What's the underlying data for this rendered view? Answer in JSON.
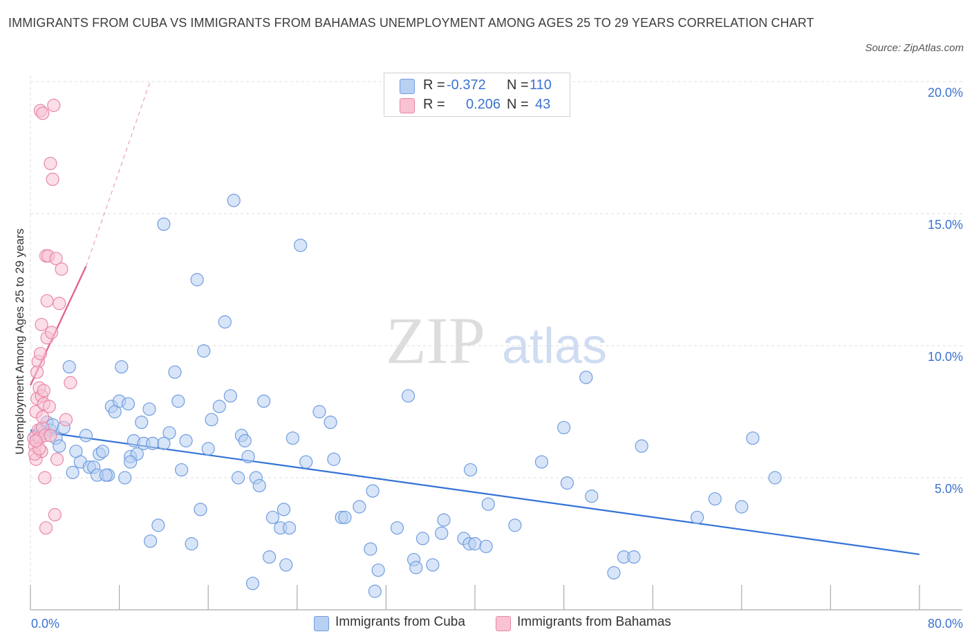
{
  "title": "IMMIGRANTS FROM CUBA VS IMMIGRANTS FROM BAHAMAS UNEMPLOYMENT AMONG AGES 25 TO 29 YEARS CORRELATION CHART",
  "source": "Source: ZipAtlas.com",
  "watermark": {
    "zip": "ZIP",
    "atlas": "atlas"
  },
  "legend": {
    "rows": [
      {
        "r_label": "R =",
        "r_value": "-0.372",
        "n_label": "N =",
        "n_value": "110",
        "color": "#b8d0f2",
        "border": "#6f9de0"
      },
      {
        "r_label": "R =",
        "r_value": "0.206",
        "n_label": "N =",
        "n_value": "43",
        "color": "#f8c3d3",
        "border": "#e987a6"
      }
    ]
  },
  "bottom_legend": [
    {
      "label": "Immigrants from Cuba",
      "color": "#b8d0f2",
      "border": "#6f9de0"
    },
    {
      "label": "Immigrants from Bahamas",
      "color": "#f8c3d3",
      "border": "#e987a6"
    }
  ],
  "chart_data": {
    "type": "scatter",
    "title": "IMMIGRANTS FROM CUBA VS IMMIGRANTS FROM BAHAMAS UNEMPLOYMENT AMONG AGES 25 TO 29 YEARS CORRELATION CHART",
    "ylabel": "Unemployment Among Ages 25 to 29 years",
    "xlabel": "",
    "xlim": [
      0,
      80
    ],
    "ylim": [
      0,
      20
    ],
    "x_tick_labels": [
      "0.0%",
      "80.0%"
    ],
    "y_tick_values": [
      5,
      10,
      15,
      20
    ],
    "y_tick_labels": [
      "5.0%",
      "10.0%",
      "15.0%",
      "20.0%"
    ],
    "grid": true,
    "legend_position": "top-center",
    "series": [
      {
        "name": "Immigrants from Cuba",
        "color": "#6f9de0",
        "fill": "#b8d0f2",
        "trend": {
          "x": [
            0,
            80
          ],
          "y": [
            6.8,
            2.1
          ],
          "color": "#3272d6"
        },
        "points": [
          [
            0.5,
            6.6
          ],
          [
            0.9,
            6.8
          ],
          [
            1.2,
            6.7
          ],
          [
            1.5,
            7.1
          ],
          [
            1.8,
            6.8
          ],
          [
            2.0,
            7.0
          ],
          [
            2.3,
            6.5
          ],
          [
            2.6,
            6.2
          ],
          [
            3.0,
            6.9
          ],
          [
            3.5,
            9.2
          ],
          [
            3.8,
            5.2
          ],
          [
            4.1,
            6.0
          ],
          [
            4.5,
            5.6
          ],
          [
            5.0,
            6.6
          ],
          [
            5.3,
            5.4
          ],
          [
            5.7,
            5.4
          ],
          [
            6.0,
            5.1
          ],
          [
            6.2,
            5.9
          ],
          [
            6.5,
            6.0
          ],
          [
            7.0,
            5.1
          ],
          [
            7.3,
            7.7
          ],
          [
            7.6,
            7.5
          ],
          [
            8.0,
            7.9
          ],
          [
            8.2,
            9.2
          ],
          [
            8.5,
            5.0
          ],
          [
            8.8,
            7.8
          ],
          [
            9.0,
            5.8
          ],
          [
            9.3,
            6.4
          ],
          [
            9.6,
            5.9
          ],
          [
            10.0,
            7.1
          ],
          [
            10.2,
            6.3
          ],
          [
            10.7,
            7.6
          ],
          [
            11.0,
            6.3
          ],
          [
            11.5,
            3.2
          ],
          [
            12.0,
            14.6
          ],
          [
            12.5,
            6.7
          ],
          [
            10.8,
            2.6
          ],
          [
            13.0,
            9.0
          ],
          [
            13.3,
            7.9
          ],
          [
            13.6,
            5.3
          ],
          [
            14.0,
            6.4
          ],
          [
            14.5,
            2.5
          ],
          [
            15.0,
            12.5
          ],
          [
            15.3,
            3.8
          ],
          [
            15.6,
            9.8
          ],
          [
            16.0,
            6.1
          ],
          [
            16.3,
            7.2
          ],
          [
            17.0,
            7.7
          ],
          [
            17.5,
            10.9
          ],
          [
            18.0,
            8.1
          ],
          [
            18.3,
            15.5
          ],
          [
            18.7,
            5.0
          ],
          [
            19.0,
            6.6
          ],
          [
            19.3,
            6.4
          ],
          [
            19.6,
            5.8
          ],
          [
            20.0,
            1.0
          ],
          [
            20.3,
            5.0
          ],
          [
            20.6,
            4.7
          ],
          [
            21.0,
            7.9
          ],
          [
            21.5,
            2.0
          ],
          [
            21.8,
            3.5
          ],
          [
            22.5,
            3.1
          ],
          [
            22.8,
            3.8
          ],
          [
            23.0,
            1.7
          ],
          [
            23.3,
            3.1
          ],
          [
            23.6,
            6.5
          ],
          [
            24.3,
            13.8
          ],
          [
            24.8,
            5.6
          ],
          [
            26.0,
            7.5
          ],
          [
            27.0,
            7.1
          ],
          [
            27.3,
            5.7
          ],
          [
            28.0,
            3.5
          ],
          [
            28.3,
            3.5
          ],
          [
            29.6,
            3.9
          ],
          [
            30.6,
            2.3
          ],
          [
            30.8,
            4.5
          ],
          [
            31.0,
            0.7
          ],
          [
            31.3,
            1.5
          ],
          [
            33.0,
            3.1
          ],
          [
            34.0,
            8.1
          ],
          [
            34.5,
            1.9
          ],
          [
            34.7,
            1.6
          ],
          [
            35.3,
            2.7
          ],
          [
            36.2,
            1.7
          ],
          [
            37.0,
            2.9
          ],
          [
            37.2,
            3.4
          ],
          [
            39.0,
            2.7
          ],
          [
            39.5,
            2.5
          ],
          [
            40.0,
            2.5
          ],
          [
            39.6,
            5.3
          ],
          [
            41.0,
            2.4
          ],
          [
            41.2,
            4.0
          ],
          [
            43.6,
            3.2
          ],
          [
            46.0,
            5.6
          ],
          [
            48.0,
            6.9
          ],
          [
            48.3,
            4.8
          ],
          [
            50.0,
            8.8
          ],
          [
            50.5,
            4.3
          ],
          [
            52.5,
            1.4
          ],
          [
            53.4,
            2.0
          ],
          [
            54.3,
            2.0
          ],
          [
            55.0,
            6.2
          ],
          [
            60.0,
            3.5
          ],
          [
            61.6,
            4.2
          ],
          [
            64.0,
            3.9
          ],
          [
            65.0,
            6.5
          ],
          [
            67.0,
            5.0
          ],
          [
            12.0,
            6.3
          ],
          [
            9.0,
            5.6
          ],
          [
            6.8,
            5.1
          ]
        ]
      },
      {
        "name": "Immigrants from Bahamas",
        "color": "#e987a6",
        "fill": "#f8c3d3",
        "trend": {
          "x": [
            0,
            5
          ],
          "y": [
            8.5,
            13.0
          ],
          "dashed_to": [
            20,
            31.2
          ],
          "color": "#e2658f"
        },
        "points": [
          [
            0.3,
            6.5
          ],
          [
            0.4,
            6.2
          ],
          [
            0.5,
            5.7
          ],
          [
            0.5,
            7.5
          ],
          [
            0.6,
            8.0
          ],
          [
            0.7,
            6.8
          ],
          [
            0.7,
            9.4
          ],
          [
            0.8,
            8.4
          ],
          [
            0.8,
            6.5
          ],
          [
            0.9,
            9.7
          ],
          [
            1.0,
            6.0
          ],
          [
            1.0,
            8.1
          ],
          [
            1.0,
            10.8
          ],
          [
            1.1,
            6.9
          ],
          [
            1.1,
            7.3
          ],
          [
            1.2,
            7.8
          ],
          [
            1.2,
            8.3
          ],
          [
            1.3,
            5.0
          ],
          [
            1.3,
            6.6
          ],
          [
            1.4,
            3.1
          ],
          [
            1.4,
            13.4
          ],
          [
            1.5,
            11.7
          ],
          [
            1.5,
            10.3
          ],
          [
            1.6,
            13.4
          ],
          [
            1.7,
            7.7
          ],
          [
            1.8,
            6.6
          ],
          [
            1.8,
            16.9
          ],
          [
            1.9,
            10.5
          ],
          [
            2.0,
            16.3
          ],
          [
            2.1,
            19.1
          ],
          [
            2.2,
            3.6
          ],
          [
            2.3,
            13.3
          ],
          [
            2.4,
            5.7
          ],
          [
            2.6,
            11.6
          ],
          [
            2.8,
            12.9
          ],
          [
            0.9,
            18.9
          ],
          [
            1.1,
            18.8
          ],
          [
            0.6,
            9.0
          ],
          [
            3.2,
            7.2
          ],
          [
            3.6,
            8.6
          ],
          [
            0.4,
            5.9
          ],
          [
            0.8,
            6.1
          ],
          [
            0.5,
            6.4
          ]
        ]
      }
    ]
  }
}
